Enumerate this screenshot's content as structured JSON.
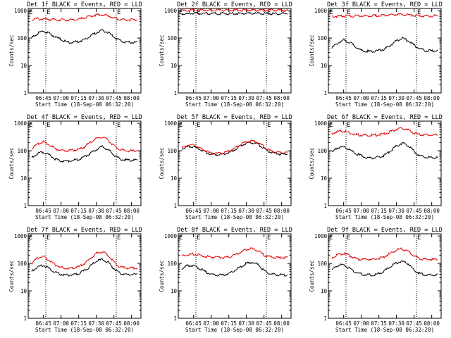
{
  "figure": {
    "ylabel": "Counts/sec",
    "xlabel": "Start Time (18-Sep-08 06:32:20)",
    "x_ticks": [
      "06:45",
      "07:00",
      "07:15",
      "07:30",
      "07:45",
      "08:00"
    ],
    "y_ticks": [
      "1",
      "10",
      "100",
      "1000"
    ],
    "marker": "E",
    "colors": {
      "events": "#000000",
      "lld": "#e00000",
      "axes": "#000000",
      "background": "#ffffff"
    }
  },
  "chart_data": [
    {
      "type": "line",
      "title": "Det 1f BLACK = Events, RED = LLD",
      "xlim": [
        "06:32",
        "08:08"
      ],
      "ylim": [
        1,
        1200
      ],
      "yscale": "log",
      "x": [
        "06:35",
        "06:40",
        "06:45",
        "06:50",
        "06:55",
        "07:00",
        "07:05",
        "07:10",
        "07:15",
        "07:20",
        "07:25",
        "07:30",
        "07:35",
        "07:40",
        "07:45",
        "07:50",
        "07:55",
        "08:00",
        "08:05"
      ],
      "event_lines": [
        "06:47",
        "07:47"
      ],
      "event_labels": [
        "E",
        "E"
      ],
      "series": [
        {
          "values": [
            100,
            150,
            180,
            150,
            110,
            90,
            70,
            70,
            75,
            90,
            120,
            160,
            190,
            160,
            110,
            80,
            70,
            70,
            70
          ]
        },
        {
          "values": [
            480,
            500,
            500,
            480,
            470,
            460,
            460,
            460,
            480,
            550,
            620,
            700,
            720,
            650,
            550,
            480,
            460,
            460,
            460
          ]
        }
      ]
    },
    {
      "type": "line",
      "title": "Det 2f BLACK = Events, RED = LLD",
      "xlim": [
        "06:32",
        "08:08"
      ],
      "ylim": [
        1,
        1200
      ],
      "yscale": "log",
      "x": [
        "06:35",
        "06:40",
        "06:45",
        "06:50",
        "06:55",
        "07:00",
        "07:05",
        "07:10",
        "07:15",
        "07:20",
        "07:25",
        "07:30",
        "07:35",
        "07:40",
        "07:45",
        "07:50",
        "07:55",
        "08:00",
        "08:05"
      ],
      "event_lines": [
        "06:47",
        "07:47"
      ],
      "event_labels": [
        "E",
        "E"
      ],
      "series": [
        {
          "values": [
            760,
            760,
            780,
            780,
            780,
            780,
            780,
            790,
            790,
            790,
            790,
            790,
            790,
            790,
            790,
            780,
            780,
            780,
            780
          ]
        },
        {
          "values": [
            1000,
            1010,
            1020,
            1020,
            1030,
            1030,
            1030,
            1040,
            1040,
            1040,
            1040,
            1040,
            1040,
            1040,
            1040,
            1040,
            1040,
            1040,
            1040
          ]
        }
      ]
    },
    {
      "type": "line",
      "title": "Det 3f BLACK = Events, RED = LLD",
      "xlim": [
        "06:32",
        "08:08"
      ],
      "ylim": [
        1,
        1200
      ],
      "yscale": "log",
      "x": [
        "06:35",
        "06:40",
        "06:45",
        "06:50",
        "06:55",
        "07:00",
        "07:05",
        "07:10",
        "07:15",
        "07:20",
        "07:25",
        "07:30",
        "07:35",
        "07:40",
        "07:45",
        "07:50",
        "07:55",
        "08:00",
        "08:05"
      ],
      "event_lines": [
        "06:47",
        "07:47"
      ],
      "event_labels": [
        "E",
        "E"
      ],
      "series": [
        {
          "values": [
            45,
            65,
            85,
            70,
            50,
            35,
            33,
            32,
            35,
            40,
            55,
            80,
            100,
            80,
            55,
            40,
            35,
            34,
            34
          ]
        },
        {
          "values": [
            620,
            620,
            640,
            640,
            640,
            640,
            640,
            650,
            660,
            680,
            700,
            720,
            720,
            700,
            680,
            650,
            640,
            640,
            640
          ]
        }
      ]
    },
    {
      "type": "line",
      "title": "Det 4f BLACK = Events, RED = LLD",
      "xlim": [
        "06:32",
        "08:08"
      ],
      "ylim": [
        1,
        1200
      ],
      "yscale": "log",
      "x": [
        "06:35",
        "06:40",
        "06:45",
        "06:50",
        "06:55",
        "07:00",
        "07:05",
        "07:10",
        "07:15",
        "07:20",
        "07:25",
        "07:30",
        "07:35",
        "07:40",
        "07:45",
        "07:50",
        "07:55",
        "08:00",
        "08:05"
      ],
      "event_lines": [
        "06:47",
        "07:47"
      ],
      "event_labels": [
        "E",
        "E"
      ],
      "series": [
        {
          "values": [
            55,
            80,
            90,
            70,
            50,
            42,
            42,
            44,
            48,
            60,
            80,
            110,
            140,
            110,
            70,
            50,
            45,
            45,
            45
          ]
        },
        {
          "values": [
            120,
            175,
            210,
            160,
            120,
            100,
            100,
            105,
            110,
            140,
            200,
            280,
            320,
            250,
            150,
            110,
            100,
            100,
            100
          ]
        }
      ]
    },
    {
      "type": "line",
      "title": "Det 5f BLACK = Events, RED = LLD",
      "xlim": [
        "06:32",
        "08:08"
      ],
      "ylim": [
        1,
        1200
      ],
      "yscale": "log",
      "x": [
        "06:35",
        "06:40",
        "06:45",
        "06:50",
        "06:55",
        "07:00",
        "07:05",
        "07:10",
        "07:15",
        "07:20",
        "07:25",
        "07:30",
        "07:35",
        "07:40",
        "07:45",
        "07:50",
        "07:55",
        "08:00",
        "08:05"
      ],
      "event_lines": [
        "06:47",
        "07:47"
      ],
      "event_labels": [
        "E",
        "E"
      ],
      "series": [
        {
          "values": [
            115,
            140,
            140,
            115,
            90,
            75,
            72,
            75,
            85,
            110,
            150,
            190,
            200,
            170,
            120,
            90,
            80,
            75,
            75
          ]
        },
        {
          "values": [
            125,
            160,
            165,
            130,
            100,
            80,
            78,
            82,
            95,
            125,
            170,
            215,
            230,
            200,
            140,
            100,
            88,
            85,
            85
          ]
        }
      ]
    },
    {
      "type": "line",
      "title": "Det 6f BLACK = Events, RED = LLD",
      "xlim": [
        "06:32",
        "08:08"
      ],
      "ylim": [
        1,
        1200
      ],
      "yscale": "log",
      "x": [
        "06:35",
        "06:40",
        "06:45",
        "06:50",
        "06:55",
        "07:00",
        "07:05",
        "07:10",
        "07:15",
        "07:20",
        "07:25",
        "07:30",
        "07:35",
        "07:40",
        "07:45",
        "07:50",
        "07:55",
        "08:00",
        "08:05"
      ],
      "event_lines": [
        "06:47",
        "07:47"
      ],
      "event_labels": [
        "E",
        "E"
      ],
      "series": [
        {
          "values": [
            85,
            130,
            140,
            110,
            80,
            65,
            55,
            55,
            58,
            70,
            100,
            150,
            190,
            150,
            95,
            65,
            58,
            55,
            55
          ]
        },
        {
          "values": [
            430,
            500,
            520,
            450,
            390,
            370,
            370,
            370,
            380,
            420,
            500,
            600,
            650,
            560,
            440,
            380,
            370,
            370,
            370
          ]
        }
      ]
    },
    {
      "type": "line",
      "title": "Det 7f BLACK = Events, RED = LLD",
      "xlim": [
        "06:32",
        "08:08"
      ],
      "ylim": [
        1,
        1200
      ],
      "yscale": "log",
      "x": [
        "06:35",
        "06:40",
        "06:45",
        "06:50",
        "06:55",
        "07:00",
        "07:05",
        "07:10",
        "07:15",
        "07:20",
        "07:25",
        "07:30",
        "07:35",
        "07:40",
        "07:45",
        "07:50",
        "07:55",
        "08:00",
        "08:05"
      ],
      "event_lines": [
        "06:47",
        "07:47"
      ],
      "event_labels": [
        "E",
        "E"
      ],
      "series": [
        {
          "values": [
            50,
            75,
            85,
            65,
            48,
            40,
            38,
            38,
            42,
            55,
            80,
            120,
            140,
            110,
            65,
            45,
            40,
            40,
            40
          ]
        },
        {
          "values": [
            100,
            160,
            180,
            130,
            90,
            70,
            65,
            68,
            75,
            100,
            150,
            230,
            270,
            200,
            110,
            75,
            68,
            68,
            68
          ]
        }
      ]
    },
    {
      "type": "line",
      "title": "Det 8f BLACK = Events, RED = LLD",
      "xlim": [
        "06:32",
        "08:08"
      ],
      "ylim": [
        1,
        1200
      ],
      "yscale": "log",
      "x": [
        "06:35",
        "06:40",
        "06:45",
        "06:50",
        "06:55",
        "07:00",
        "07:05",
        "07:10",
        "07:15",
        "07:20",
        "07:25",
        "07:30",
        "07:35",
        "07:40",
        "07:45",
        "07:50",
        "07:55",
        "08:00",
        "08:05"
      ],
      "event_lines": [
        "06:47",
        "07:47"
      ],
      "event_labels": [
        "E",
        "E"
      ],
      "series": [
        {
          "values": [
            65,
            85,
            85,
            65,
            50,
            40,
            38,
            38,
            42,
            55,
            75,
            100,
            110,
            90,
            55,
            42,
            38,
            38,
            38
          ]
        },
        {
          "values": [
            180,
            210,
            220,
            200,
            180,
            170,
            165,
            165,
            170,
            200,
            260,
            320,
            340,
            290,
            200,
            170,
            160,
            160,
            160
          ]
        }
      ]
    },
    {
      "type": "line",
      "title": "Det 9f BLACK = Events, RED = LLD",
      "xlim": [
        "06:32",
        "08:08"
      ],
      "ylim": [
        1,
        1200
      ],
      "yscale": "log",
      "x": [
        "06:35",
        "06:40",
        "06:45",
        "06:50",
        "06:55",
        "07:00",
        "07:05",
        "07:10",
        "07:15",
        "07:20",
        "07:25",
        "07:30",
        "07:35",
        "07:40",
        "07:45",
        "07:50",
        "07:55",
        "08:00",
        "08:05"
      ],
      "event_lines": [
        "06:47",
        "07:47"
      ],
      "event_labels": [
        "E",
        "E"
      ],
      "series": [
        {
          "values": [
            58,
            85,
            88,
            65,
            48,
            40,
            38,
            38,
            42,
            55,
            75,
            105,
            120,
            95,
            58,
            42,
            38,
            38,
            38
          ]
        },
        {
          "values": [
            160,
            210,
            230,
            190,
            150,
            140,
            140,
            140,
            150,
            180,
            240,
            310,
            340,
            270,
            180,
            150,
            140,
            140,
            140
          ]
        }
      ]
    }
  ]
}
